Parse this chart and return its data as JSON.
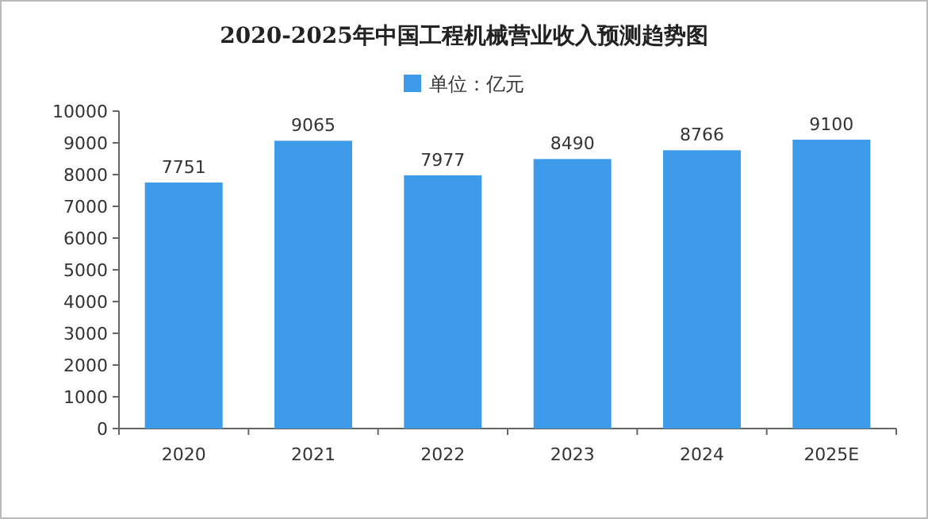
{
  "chart_data": {
    "type": "bar",
    "title": "2020-2025年中国工程机械营业收入预测趋势图",
    "categories": [
      "2020",
      "2021",
      "2022",
      "2023",
      "2024",
      "2025E"
    ],
    "series": [
      {
        "name": "单位：亿元",
        "color": "#3d9be9",
        "values": [
          7751,
          9065,
          7977,
          8490,
          8766,
          9100
        ]
      }
    ],
    "ylim": [
      0,
      10000
    ],
    "yticks": [
      0,
      1000,
      2000,
      3000,
      4000,
      5000,
      6000,
      7000,
      8000,
      9000,
      10000
    ],
    "data_labels": true,
    "legend": "top"
  }
}
